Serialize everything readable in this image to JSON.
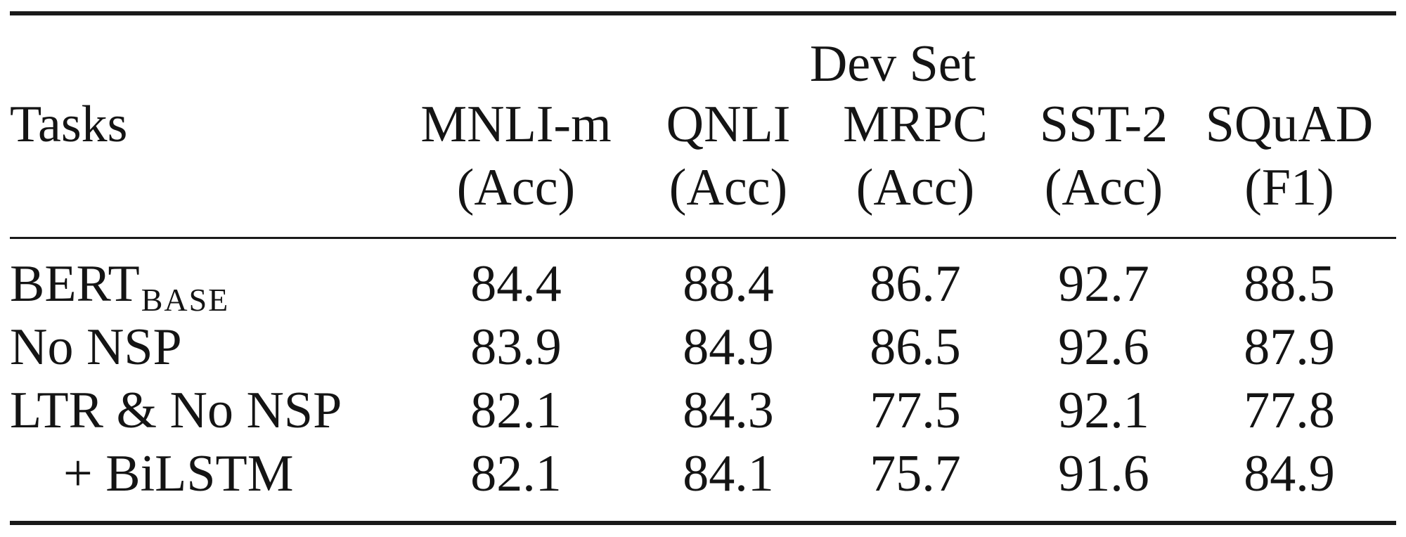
{
  "table": {
    "group_header": "Dev Set",
    "tasks_header": "Tasks",
    "columns": [
      {
        "name": "MNLI-m",
        "metric": "(Acc)"
      },
      {
        "name": "QNLI",
        "metric": "(Acc)"
      },
      {
        "name": "MRPC",
        "metric": "(Acc)"
      },
      {
        "name": "SST-2",
        "metric": "(Acc)"
      },
      {
        "name": "SQuAD",
        "metric": "(F1)"
      }
    ],
    "rows": [
      {
        "label": "BERT",
        "label_sub": "BASE",
        "values": [
          "84.4",
          "88.4",
          "86.7",
          "92.7",
          "88.5"
        ]
      },
      {
        "label": "No NSP",
        "values": [
          "83.9",
          "84.9",
          "86.5",
          "92.6",
          "87.9"
        ]
      },
      {
        "label": "LTR & No NSP",
        "values": [
          "82.1",
          "84.3",
          "77.5",
          "92.1",
          "77.8"
        ]
      },
      {
        "label": "+ BiLSTM",
        "values": [
          "82.1",
          "84.1",
          "75.7",
          "91.6",
          "84.9"
        ]
      }
    ]
  },
  "chart_data": {
    "type": "table",
    "columns": [
      "Tasks",
      "MNLI-m (Acc)",
      "QNLI (Acc)",
      "MRPC (Acc)",
      "SST-2 (Acc)",
      "SQuAD (F1)"
    ],
    "rows": [
      [
        "BERT BASE",
        84.4,
        88.4,
        86.7,
        92.7,
        88.5
      ],
      [
        "No NSP",
        83.9,
        84.9,
        86.5,
        92.6,
        87.9
      ],
      [
        "LTR & No NSP",
        82.1,
        84.3,
        77.5,
        92.1,
        77.8
      ],
      [
        "+ BiLSTM",
        82.1,
        84.1,
        75.7,
        91.6,
        84.9
      ]
    ]
  }
}
